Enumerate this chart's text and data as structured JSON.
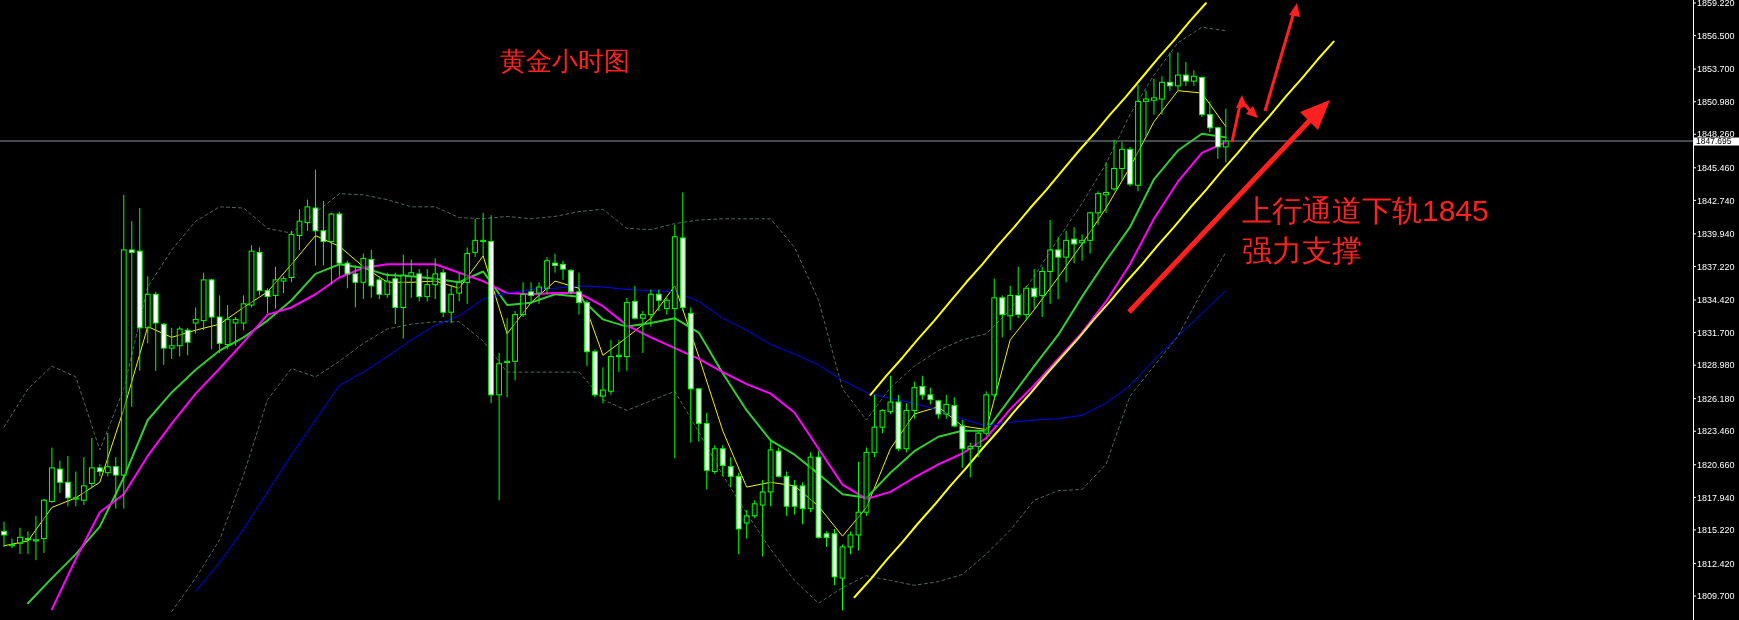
{
  "chart_data": [
    {
      "type": "candlestick",
      "title": "黄金小时图",
      "annotations": [
        "上行通道下轨1845",
        "强力支撑"
      ],
      "tick_labels": "y",
      "grid": false,
      "ylim": [
        1807.7,
        1859.47
      ],
      "yticks": [
        {
          "value": 1859.22,
          "label": "1859.220"
        },
        {
          "value": 1856.5,
          "label": "1856.500"
        },
        {
          "value": 1853.7,
          "label": "1853.700"
        },
        {
          "value": 1850.98,
          "label": "1850.980"
        },
        {
          "value": 1848.26,
          "label": "1848.260"
        },
        {
          "value": 1845.46,
          "label": "1845.460"
        },
        {
          "value": 1842.74,
          "label": "1842.740"
        },
        {
          "value": 1839.94,
          "label": "1839.940"
        },
        {
          "value": 1837.22,
          "label": "1837.220"
        },
        {
          "value": 1834.42,
          "label": "1834.420"
        },
        {
          "value": 1831.7,
          "label": "1831.700"
        },
        {
          "value": 1828.98,
          "label": "1828.980"
        },
        {
          "value": 1826.18,
          "label": "1826.180"
        },
        {
          "value": 1823.46,
          "label": "1823.460"
        },
        {
          "value": 1820.66,
          "label": "1820.660"
        },
        {
          "value": 1817.94,
          "label": "1817.940"
        },
        {
          "value": 1815.22,
          "label": "1815.220"
        },
        {
          "value": 1812.42,
          "label": "1812.420"
        },
        {
          "value": 1809.7,
          "label": "1809.700"
        }
      ],
      "ref_lines": [
        {
          "axis": "y",
          "value": 1847.695,
          "label": "1847.695",
          "color": "#8c96a0"
        }
      ],
      "categories": [
        null,
        null,
        null,
        null,
        null,
        null,
        null,
        null,
        null,
        null,
        null,
        null,
        null,
        null,
        null,
        null,
        null,
        null,
        null,
        null,
        null,
        null,
        null,
        null,
        null,
        null,
        null,
        null,
        null,
        null,
        null,
        null,
        null,
        null,
        null,
        null,
        null,
        null,
        null,
        null,
        null,
        null,
        null,
        null,
        null,
        null,
        null,
        null,
        null,
        null,
        null,
        null,
        null,
        null,
        null,
        null,
        null,
        null,
        null,
        null,
        null,
        null,
        null,
        null,
        null,
        null,
        null,
        null,
        null,
        null,
        null,
        null,
        null,
        null,
        null,
        null,
        null,
        null,
        null,
        null,
        null,
        null,
        null,
        null,
        null,
        null,
        null,
        null,
        null,
        null,
        null,
        null,
        null,
        null,
        null,
        null,
        null,
        null,
        null,
        null,
        null,
        null,
        null,
        null,
        null,
        null,
        null,
        null,
        null,
        null,
        null,
        null,
        null,
        null,
        null,
        null,
        null,
        null,
        null,
        null,
        null,
        null,
        null,
        null,
        null,
        null,
        null,
        null,
        null,
        null,
        null,
        null,
        null,
        null,
        null,
        null,
        null,
        null,
        null,
        null,
        null,
        null,
        null,
        null,
        null,
        null,
        null,
        null,
        null,
        null,
        null,
        null,
        null,
        null,
        null,
        null,
        null,
        null,
        null,
        null,
        null,
        null,
        null,
        null,
        null,
        null,
        null,
        null,
        null,
        null,
        null,
        null,
        null,
        null,
        null,
        null,
        null,
        null,
        null,
        null,
        null,
        null,
        null,
        null,
        null,
        null,
        null,
        null,
        null,
        null,
        null,
        null,
        null,
        null,
        null,
        null,
        null,
        null,
        null,
        null,
        null,
        null,
        null,
        null,
        null,
        null,
        null,
        null,
        null,
        null,
        null,
        null
      ],
      "ohlc": [
        [
          1815.1,
          1815.9,
          1813.8,
          1814.8
        ],
        [
          1813.9,
          1814.5,
          1813.7,
          1814.0
        ],
        [
          1814.1,
          1815.4,
          1813.2,
          1814.6
        ],
        [
          1814.5,
          1815.1,
          1813.2,
          1814.4
        ],
        [
          1814.3,
          1816.4,
          1812.7,
          1814.4
        ],
        [
          1814.5,
          1817.8,
          1813.3,
          1817.7
        ],
        [
          1817.6,
          1822.1,
          1817.5,
          1820.4
        ],
        [
          1820.3,
          1821.0,
          1818.3,
          1819.2
        ],
        [
          1819.2,
          1821.4,
          1817.2,
          1817.9
        ],
        [
          1817.8,
          1820.1,
          1817.2,
          1817.9
        ],
        [
          1817.7,
          1821.3,
          1817.3,
          1818.9
        ],
        [
          1819.1,
          1822.9,
          1818.8,
          1820.4
        ],
        [
          1820.4,
          1820.7,
          1819.7,
          1820.1
        ],
        [
          1820.0,
          1823.3,
          1819.7,
          1820.5
        ],
        [
          1820.5,
          1821.3,
          1817.0,
          1819.8
        ],
        [
          1819.8,
          1843.2,
          1817.0,
          1838.6
        ],
        [
          1838.6,
          1841.0,
          1825.5,
          1838.4
        ],
        [
          1838.5,
          1842.1,
          1828.5,
          1832.1
        ],
        [
          1832.1,
          1836.4,
          1830.8,
          1834.9
        ],
        [
          1834.9,
          1835.1,
          1828.5,
          1832.5
        ],
        [
          1832.4,
          1832.5,
          1829.0,
          1830.4
        ],
        [
          1830.4,
          1832.1,
          1829.5,
          1830.6
        ],
        [
          1830.6,
          1832.2,
          1829.7,
          1832.0
        ],
        [
          1831.9,
          1832.1,
          1829.8,
          1830.9
        ],
        [
          1832.5,
          1833.8,
          1831.6,
          1832.8
        ],
        [
          1832.7,
          1836.7,
          1831.9,
          1836.1
        ],
        [
          1836.1,
          1836.2,
          1830.3,
          1833.0
        ],
        [
          1833.0,
          1834.8,
          1830.0,
          1830.8
        ],
        [
          1830.7,
          1834.0,
          1830.3,
          1832.8
        ],
        [
          1832.5,
          1833.0,
          1830.6,
          1832.8
        ],
        [
          1832.5,
          1834.8,
          1831.9,
          1834.1
        ],
        [
          1834.0,
          1839.0,
          1833.8,
          1838.5
        ],
        [
          1838.4,
          1838.8,
          1834.8,
          1835.2
        ],
        [
          1835.2,
          1835.4,
          1833.3,
          1834.7
        ],
        [
          1834.8,
          1837.2,
          1833.7,
          1836.1
        ],
        [
          1836.0,
          1836.4,
          1835.0,
          1836.2
        ],
        [
          1836.3,
          1840.2,
          1835.9,
          1839.9
        ],
        [
          1839.8,
          1842.0,
          1838.6,
          1841.0
        ],
        [
          1840.9,
          1842.8,
          1840.2,
          1842.2
        ],
        [
          1842.1,
          1845.3,
          1837.3,
          1840.2
        ],
        [
          1840.2,
          1842.7,
          1837.3,
          1839.3
        ],
        [
          1839.3,
          1841.7,
          1835.7,
          1841.6
        ],
        [
          1841.6,
          1841.8,
          1836.4,
          1837.5
        ],
        [
          1837.5,
          1837.7,
          1835.4,
          1836.6
        ],
        [
          1836.6,
          1837.3,
          1833.8,
          1835.9
        ],
        [
          1835.9,
          1838.3,
          1834.5,
          1837.9
        ],
        [
          1837.8,
          1838.6,
          1834.6,
          1835.6
        ],
        [
          1836.1,
          1836.4,
          1834.5,
          1834.9
        ],
        [
          1834.9,
          1836.7,
          1834.6,
          1836.0
        ],
        [
          1836.2,
          1836.7,
          1832.4,
          1833.8
        ],
        [
          1833.8,
          1838.2,
          1831.2,
          1836.5
        ],
        [
          1836.4,
          1837.8,
          1834.6,
          1836.7
        ],
        [
          1836.6,
          1837.0,
          1834.3,
          1834.7
        ],
        [
          1834.7,
          1837.0,
          1834.3,
          1835.7
        ],
        [
          1835.7,
          1837.9,
          1834.5,
          1836.6
        ],
        [
          1836.7,
          1837.0,
          1833.0,
          1833.4
        ],
        [
          1833.4,
          1835.6,
          1832.5,
          1834.9
        ],
        [
          1835.0,
          1836.7,
          1834.3,
          1835.9
        ],
        [
          1835.9,
          1838.8,
          1834.1,
          1838.3
        ],
        [
          1838.4,
          1841.2,
          1838.0,
          1839.4
        ],
        [
          1839.3,
          1841.7,
          1838.1,
          1839.4
        ],
        [
          1839.3,
          1841.5,
          1825.8,
          1826.5
        ],
        [
          1826.5,
          1830.0,
          1817.7,
          1829.1
        ],
        [
          1829.2,
          1832.9,
          1826.3,
          1829.3
        ],
        [
          1829.3,
          1833.5,
          1827.7,
          1833.2
        ],
        [
          1833.2,
          1835.9,
          1833.0,
          1834.9
        ],
        [
          1835.1,
          1835.9,
          1834.1,
          1834.8
        ],
        [
          1835.0,
          1835.9,
          1834.1,
          1835.5
        ],
        [
          1835.4,
          1838.0,
          1834.9,
          1837.7
        ],
        [
          1837.5,
          1838.3,
          1836.7,
          1837.3
        ],
        [
          1837.4,
          1837.7,
          1836.1,
          1837.0
        ],
        [
          1836.9,
          1837.0,
          1834.9,
          1835.1
        ],
        [
          1835.1,
          1836.7,
          1833.2,
          1834.2
        ],
        [
          1834.2,
          1834.4,
          1828.9,
          1830.1
        ],
        [
          1830.1,
          1830.3,
          1826.3,
          1826.5
        ],
        [
          1826.4,
          1828.8,
          1825.8,
          1826.9
        ],
        [
          1826.8,
          1831.1,
          1826.5,
          1829.7
        ],
        [
          1829.7,
          1831.1,
          1828.4,
          1829.8
        ],
        [
          1829.7,
          1834.6,
          1828.5,
          1834.2
        ],
        [
          1834.3,
          1835.6,
          1832.8,
          1832.9
        ],
        [
          1832.9,
          1833.5,
          1830.0,
          1833.2
        ],
        [
          1833.2,
          1835.3,
          1832.2,
          1834.9
        ],
        [
          1834.9,
          1835.3,
          1833.5,
          1834.4
        ],
        [
          1833.7,
          1834.6,
          1833.2,
          1834.4
        ],
        [
          1833.7,
          1840.7,
          1821.2,
          1839.7
        ],
        [
          1839.6,
          1843.4,
          1833.5,
          1833.8
        ],
        [
          1833.3,
          1833.8,
          1822.5,
          1827.0
        ],
        [
          1827.0,
          1827.1,
          1822.6,
          1824.1
        ],
        [
          1824.1,
          1825.0,
          1818.6,
          1820.2
        ],
        [
          1820.1,
          1822.3,
          1819.9,
          1822.0
        ],
        [
          1822.0,
          1822.3,
          1819.7,
          1820.6
        ],
        [
          1820.5,
          1821.3,
          1818.8,
          1819.7
        ],
        [
          1819.7,
          1820.0,
          1813.2,
          1815.3
        ],
        [
          1815.8,
          1816.9,
          1814.5,
          1816.4
        ],
        [
          1816.4,
          1817.7,
          1816.2,
          1817.4
        ],
        [
          1817.3,
          1819.4,
          1813.0,
          1818.4
        ],
        [
          1818.4,
          1822.8,
          1817.2,
          1821.9
        ],
        [
          1821.8,
          1822.1,
          1819.6,
          1819.7
        ],
        [
          1819.7,
          1820.1,
          1816.4,
          1817.2
        ],
        [
          1818.9,
          1819.4,
          1816.5,
          1817.2
        ],
        [
          1818.9,
          1819.2,
          1815.7,
          1817.0
        ],
        [
          1817.0,
          1821.7,
          1816.7,
          1821.3
        ],
        [
          1821.3,
          1821.8,
          1814.5,
          1814.6
        ],
        [
          1814.9,
          1815.1,
          1813.8,
          1814.6
        ],
        [
          1814.9,
          1815.3,
          1810.6,
          1811.3
        ],
        [
          1811.2,
          1814.0,
          1808.5,
          1813.8
        ],
        [
          1813.8,
          1815.1,
          1813.2,
          1814.8
        ],
        [
          1814.8,
          1820.9,
          1813.5,
          1816.7
        ],
        [
          1816.7,
          1822.1,
          1816.4,
          1821.7
        ],
        [
          1821.7,
          1826.5,
          1821.3,
          1823.8
        ],
        [
          1823.8,
          1825.3,
          1823.3,
          1825.2
        ],
        [
          1825.1,
          1828.1,
          1824.9,
          1825.9
        ],
        [
          1825.9,
          1826.5,
          1821.8,
          1822.0
        ],
        [
          1822.0,
          1825.8,
          1821.7,
          1825.2
        ],
        [
          1825.2,
          1827.6,
          1824.5,
          1827.1
        ],
        [
          1827.2,
          1828.1,
          1826.1,
          1826.5
        ],
        [
          1826.5,
          1827.1,
          1825.7,
          1826.1
        ],
        [
          1826.0,
          1826.1,
          1824.5,
          1824.9
        ],
        [
          1824.9,
          1826.5,
          1824.5,
          1825.7
        ],
        [
          1825.6,
          1826.3,
          1823.8,
          1823.9
        ],
        [
          1823.9,
          1824.4,
          1820.4,
          1822.0
        ],
        [
          1822.0,
          1822.5,
          1819.6,
          1822.2
        ],
        [
          1822.2,
          1823.4,
          1821.3,
          1823.3
        ],
        [
          1823.3,
          1826.8,
          1823.1,
          1826.5
        ],
        [
          1826.5,
          1836.2,
          1826.1,
          1834.6
        ],
        [
          1834.6,
          1834.8,
          1831.3,
          1833.2
        ],
        [
          1833.1,
          1835.6,
          1831.9,
          1834.8
        ],
        [
          1834.8,
          1837.2,
          1832.9,
          1833.2
        ],
        [
          1833.2,
          1835.6,
          1832.7,
          1835.4
        ],
        [
          1835.4,
          1837.0,
          1833.7,
          1834.7
        ],
        [
          1834.8,
          1837.2,
          1833.0,
          1836.8
        ],
        [
          1836.8,
          1841.1,
          1834.1,
          1838.6
        ],
        [
          1838.6,
          1839.7,
          1834.5,
          1838.0
        ],
        [
          1838.0,
          1840.2,
          1835.9,
          1839.4
        ],
        [
          1839.5,
          1840.5,
          1837.5,
          1839.1
        ],
        [
          1839.2,
          1839.9,
          1837.7,
          1839.4
        ],
        [
          1839.4,
          1841.8,
          1838.3,
          1841.7
        ],
        [
          1841.7,
          1843.5,
          1840.7,
          1843.3
        ],
        [
          1843.2,
          1845.9,
          1841.7,
          1843.4
        ],
        [
          1843.7,
          1847.8,
          1843.5,
          1845.4
        ],
        [
          1845.4,
          1847.6,
          1844.4,
          1847.0
        ],
        [
          1847.0,
          1847.2,
          1843.9,
          1844.1
        ],
        [
          1844.0,
          1852.4,
          1843.5,
          1851.0
        ],
        [
          1851.0,
          1851.9,
          1848.1,
          1851.2
        ],
        [
          1851.1,
          1852.9,
          1849.9,
          1851.3
        ],
        [
          1851.2,
          1853.1,
          1849.9,
          1852.6
        ],
        [
          1852.6,
          1855.1,
          1851.9,
          1852.3
        ],
        [
          1852.3,
          1855.1,
          1851.9,
          1853.2
        ],
        [
          1853.2,
          1854.3,
          1852.3,
          1852.7
        ],
        [
          1852.7,
          1853.6,
          1852.3,
          1853.1
        ],
        [
          1853.0,
          1853.1,
          1849.7,
          1849.9
        ],
        [
          1849.9,
          1851.0,
          1848.4,
          1848.8
        ],
        [
          1848.8,
          1848.9,
          1846.2,
          1847.2
        ],
        [
          1847.2,
          1850.4,
          1845.9,
          1847.7
        ],
        null,
        null,
        null,
        null,
        null,
        null,
        null,
        null,
        null,
        null,
        null,
        null,
        null,
        null,
        null,
        null,
        null,
        null,
        null,
        null,
        null,
        null,
        null,
        null,
        null,
        null,
        null,
        null,
        null,
        null,
        null,
        null,
        null,
        null,
        null,
        null,
        null,
        null,
        null,
        null,
        null,
        null,
        null,
        null,
        null,
        null,
        null,
        null,
        null,
        null,
        null,
        null,
        null,
        null,
        null,
        null,
        null,
        null
      ]
    },
    {
      "type": "line",
      "tick_labels": false,
      "ylim": [
        1807.7,
        1859.47
      ],
      "categories": [
        null,
        null,
        null,
        null,
        null,
        null,
        null,
        null,
        null,
        null,
        null,
        null,
        null,
        null,
        null,
        null,
        null,
        null,
        null,
        null,
        null,
        null,
        null,
        null,
        null,
        null,
        null,
        null,
        null,
        null,
        null,
        null,
        null,
        null,
        null,
        null,
        null,
        null,
        null,
        null,
        null,
        null,
        null,
        null,
        null,
        null,
        null,
        null,
        null,
        null,
        null,
        null
      ],
      "series": [
        {
          "color": "#f0f000",
          "values": [
            1813.9,
            1814.3,
            1817.1,
            1817.9,
            1819.2,
            1825.3,
            1832.2,
            1831.3,
            1831.9,
            1832.4,
            1833.8,
            1835.1,
            1837.4,
            1839.8,
            1838.9,
            1837.2,
            1835.9,
            1835.9,
            1836.0,
            1835.4,
            1838.1,
            1831.6,
            1834.2,
            1836.0,
            1835.4,
            1829.8,
            1831.3,
            1832.9,
            1835.6,
            1829.7,
            1823.5,
            1818.8,
            1819.2,
            1818.9,
            1817.2,
            1814.7,
            1817.1,
            1822.0,
            1824.9,
            1825.5,
            1823.9,
            1823.6,
            1831.1,
            1833.6,
            1836.3,
            1839.1,
            1842.1,
            1845.5,
            1849.3,
            1851.9,
            1851.7,
            1848.9
          ]
        }
      ]
    },
    {
      "type": "line",
      "tick_labels": false,
      "ylim": [
        1807.7,
        1859.47
      ],
      "categories": [
        null,
        null,
        null,
        null,
        null,
        null,
        null,
        null,
        null,
        null,
        null,
        null,
        null,
        null,
        null,
        null,
        null,
        null,
        null,
        null,
        null,
        null,
        null,
        null,
        null,
        null,
        null,
        null,
        null,
        null,
        null,
        null,
        null,
        null,
        null,
        null,
        null,
        null,
        null,
        null,
        null,
        null,
        null,
        null,
        null,
        null,
        null,
        null,
        null,
        null,
        null
      ],
      "series": [
        {
          "color": "#33cc33",
          "values": [
            1809.1,
            1811.2,
            1813.2,
            1815.5,
            1819.6,
            1824.4,
            1826.7,
            1828.6,
            1830.2,
            1831.3,
            1832.7,
            1834.4,
            1836.6,
            1837.4,
            1837.1,
            1836.5,
            1836.4,
            1836.2,
            1835.9,
            1836.8,
            1834.0,
            1834.2,
            1834.9,
            1834.7,
            1832.8,
            1832.2,
            1832.5,
            1832.9,
            1831.7,
            1828.3,
            1825.2,
            1822.7,
            1821.5,
            1819.9,
            1818.2,
            1817.9,
            1820.0,
            1821.8,
            1823.0,
            1823.5,
            1823.5,
            1826.2,
            1828.9,
            1831.5,
            1834.7,
            1837.7,
            1840.5,
            1844.5,
            1846.9,
            1848.3,
            1848.0
          ]
        }
      ]
    },
    {
      "type": "line",
      "tick_labels": false,
      "ylim": [
        1807.7,
        1859.47
      ],
      "categories": [
        null,
        null,
        null,
        null,
        null,
        null,
        null,
        null,
        null,
        null,
        null,
        null,
        null,
        null,
        null,
        null,
        null,
        null,
        null,
        null,
        null,
        null,
        null,
        null,
        null,
        null,
        null,
        null,
        null,
        null,
        null,
        null,
        null,
        null,
        null,
        null,
        null,
        null,
        null,
        null,
        null,
        null,
        null,
        null,
        null,
        null,
        null,
        null,
        null,
        null
      ],
      "series": [
        {
          "color": "#ff00ff",
          "values": [
            1808.6,
            1812.8,
            1816.7,
            1818.2,
            1821.4,
            1824.1,
            1826.6,
            1828.7,
            1830.9,
            1833.2,
            1833.8,
            1834.9,
            1836.3,
            1837.1,
            1837.4,
            1837.4,
            1837.4,
            1836.7,
            1836.0,
            1835.0,
            1834.9,
            1835.0,
            1835.0,
            1833.9,
            1832.3,
            1831.3,
            1830.4,
            1829.5,
            1828.4,
            1827.4,
            1826.6,
            1825.0,
            1822.0,
            1819.0,
            1817.8,
            1818.4,
            1819.6,
            1820.7,
            1821.6,
            1822.9,
            1825.3,
            1827.3,
            1829.5,
            1831.7,
            1834.3,
            1837.4,
            1841.2,
            1844.3,
            1846.7,
            1847.6
          ]
        }
      ]
    },
    {
      "type": "line",
      "tick_labels": false,
      "ylim": [
        1807.7,
        1859.47
      ],
      "categories": [
        null,
        null,
        null,
        null,
        null,
        null,
        null,
        null,
        null,
        null,
        null,
        null,
        null,
        null,
        null,
        null,
        null,
        null,
        null,
        null,
        null,
        null,
        null,
        null,
        null,
        null,
        null,
        null,
        null,
        null,
        null,
        null,
        null,
        null,
        null,
        null,
        null,
        null,
        null,
        null,
        null,
        null,
        null,
        null
      ],
      "series": [
        {
          "color": "#0000ff",
          "values": [
            1810.1,
            1812.5,
            1815.3,
            1818.4,
            1821.5,
            1824.4,
            1827.3,
            1828.4,
            1829.7,
            1831.1,
            1832.3,
            1833.1,
            1834.5,
            1835.0,
            1835.3,
            1835.4,
            1835.6,
            1835.5,
            1835.3,
            1835.2,
            1835.1,
            1834.3,
            1832.9,
            1831.9,
            1830.7,
            1829.9,
            1829.0,
            1827.7,
            1826.7,
            1826.2,
            1825.8,
            1825.2,
            1824.5,
            1823.9,
            1824.2,
            1824.4,
            1824.5,
            1824.8,
            1825.8,
            1827.3,
            1829.4,
            1831.4,
            1833.3,
            1835.2
          ]
        }
      ]
    },
    {
      "type": "line",
      "tick_labels": false,
      "ylim": [
        1807.7,
        1859.47
      ],
      "categories": [
        null,
        null,
        null,
        null,
        null,
        null,
        null,
        null,
        null,
        null,
        null,
        null,
        null,
        null,
        null,
        null,
        null,
        null,
        null,
        null,
        null,
        null,
        null,
        null,
        null,
        null,
        null,
        null,
        null,
        null,
        null,
        null,
        null,
        null,
        null,
        null,
        null,
        null,
        null,
        null,
        null,
        null,
        null,
        null,
        null,
        null,
        null,
        null,
        null,
        null,
        null,
        null
      ],
      "series": [
        {
          "color": "#4a6a5a",
          "line_style": "dashed",
          "values": [
            1823.8,
            1827.0,
            1828.9,
            1828.0,
            1821.9,
            1827.0,
            1835.5,
            1838.6,
            1841.0,
            1842.2,
            1842.1,
            1840.4,
            1840.0,
            1841.7,
            1843.3,
            1843.2,
            1842.8,
            1842.2,
            1842.2,
            1841.3,
            1841.2,
            1841.4,
            1841.2,
            1841.4,
            1841.8,
            1842.0,
            1840.4,
            1840.3,
            1840.8,
            1841.1,
            1841.2,
            1841.2,
            1841.2,
            1838.8,
            1834.4,
            1827.0,
            1824.4,
            1827.1,
            1828.9,
            1830.2,
            1831.1,
            1831.6,
            1833.6,
            1836.4,
            1839.5,
            1842.5,
            1845.8,
            1849.9,
            1853.2,
            1855.9,
            1857.2,
            1856.9
          ]
        }
      ]
    },
    {
      "type": "line",
      "tick_labels": false,
      "ylim": [
        1807.7,
        1859.47
      ],
      "categories": [
        null,
        null,
        null,
        null,
        null,
        null,
        null,
        null,
        null,
        null,
        null,
        null,
        null,
        null,
        null,
        null,
        null,
        null,
        null,
        null,
        null,
        null,
        null,
        null,
        null,
        null,
        null,
        null,
        null,
        null,
        null,
        null,
        null,
        null,
        null,
        null,
        null,
        null,
        null,
        null,
        null,
        null,
        null,
        null,
        null
      ],
      "series": [
        {
          "color": "#4a6a5a",
          "line_style": "dashed",
          "values": [
            1808.4,
            1811.2,
            1814.4,
            1819.8,
            1826.1,
            1828.7,
            1828.0,
            1829.3,
            1830.8,
            1832.0,
            1832.4,
            1832.6,
            1832.6,
            1831.0,
            1828.4,
            1828.4,
            1828.4,
            1828.4,
            1826.1,
            1825.2,
            1826.0,
            1826.8,
            1823.4,
            1819.8,
            1816.6,
            1813.6,
            1811.0,
            1809.1,
            1810.4,
            1811.4,
            1811.0,
            1810.6,
            1810.9,
            1811.5,
            1813.2,
            1815.2,
            1817.7,
            1818.5,
            1818.6,
            1820.7,
            1826.4,
            1828.9,
            1831.4,
            1835.1,
            1838.4
          ]
        }
      ]
    },
    {
      "type": "line",
      "tick_labels": false,
      "ylim": [
        1807.7,
        1859.47
      ],
      "categories": [
        null,
        null,
        null,
        null,
        null,
        null,
        null,
        null,
        null,
        null,
        null,
        null,
        null,
        null,
        null,
        null,
        null,
        null,
        null,
        null,
        null,
        null,
        null,
        null,
        null,
        null,
        null,
        null,
        null,
        null,
        null,
        null,
        null,
        null,
        null,
        null,
        null,
        null,
        null,
        null,
        null,
        null,
        null,
        null,
        null,
        null,
        null,
        null,
        null,
        null,
        null,
        null,
        null,
        null,
        null,
        null,
        null,
        null,
        null,
        null,
        null,
        null,
        null,
        null,
        null,
        null,
        null,
        null,
        null,
        null,
        null,
        null,
        null,
        null,
        null,
        null,
        null,
        null,
        null,
        null,
        null,
        null,
        null,
        null,
        null,
        null,
        null,
        null,
        null,
        null,
        null,
        null,
        null,
        null,
        null,
        null,
        null,
        null,
        null,
        null,
        null,
        null,
        null,
        null,
        null,
        null
      ],
      "series": [
        {
          "color": "#ffff00",
          "values": [
            null,
            null,
            null,
            null,
            null,
            null,
            null,
            null,
            null,
            null,
            null,
            null,
            null,
            null,
            null,
            null,
            null,
            null,
            null,
            null,
            null,
            null,
            null,
            null,
            null,
            null,
            null,
            null,
            null,
            null,
            null,
            null,
            null,
            null,
            null,
            null,
            null,
            null,
            null,
            null,
            null,
            null,
            null,
            null,
            null,
            null,
            null,
            null,
            null,
            null,
            null,
            null,
            null,
            null,
            1826.5,
            1828.1,
            1829.6,
            1831.2,
            1832.7,
            1834.3,
            1835.9,
            1837.4,
            1839.0,
            1840.5,
            1842.1,
            1843.6,
            1845.2,
            1846.8,
            1848.3,
            1849.9,
            1851.4,
            1853.0,
            1854.6,
            1856.1,
            1857.7,
            1859.2,
            null,
            null,
            null,
            null,
            null,
            null,
            null,
            null,
            null,
            null,
            null,
            null,
            null,
            null,
            null,
            null,
            null,
            null,
            null,
            null,
            null,
            null,
            null,
            null,
            null,
            null,
            null,
            null,
            null,
            null
          ]
        }
      ]
    },
    {
      "type": "line",
      "tick_labels": false,
      "ylim": [
        1807.7,
        1859.47
      ],
      "categories": [
        null,
        null,
        null,
        null,
        null,
        null,
        null,
        null,
        null,
        null,
        null,
        null,
        null,
        null,
        null,
        null,
        null,
        null,
        null,
        null,
        null,
        null,
        null,
        null,
        null,
        null,
        null,
        null,
        null,
        null,
        null,
        null,
        null,
        null,
        null,
        null,
        null,
        null,
        null,
        null,
        null,
        null,
        null,
        null,
        null,
        null,
        null,
        null,
        null,
        null,
        null,
        null,
        null,
        null,
        null,
        null,
        null,
        null,
        null,
        null,
        null,
        null,
        null,
        null,
        null,
        null,
        null,
        null,
        null,
        null,
        null,
        null,
        null,
        null,
        null,
        null,
        null,
        null,
        null,
        null,
        null,
        null,
        null,
        null,
        null,
        null,
        null,
        null,
        null,
        null,
        null,
        null,
        null,
        null,
        null,
        null,
        null,
        null,
        null,
        null,
        null,
        null,
        null,
        null,
        null,
        null
      ],
      "series": [
        {
          "color": "#ffff10",
          "values": [
            null,
            null,
            null,
            null,
            null,
            null,
            null,
            null,
            null,
            null,
            null,
            null,
            null,
            null,
            null,
            null,
            null,
            null,
            null,
            null,
            null,
            null,
            null,
            null,
            null,
            null,
            null,
            null,
            null,
            null,
            null,
            null,
            null,
            null,
            null,
            null,
            null,
            null,
            null,
            null,
            null,
            null,
            null,
            null,
            null,
            null,
            null,
            null,
            null,
            null,
            null,
            null,
            null,
            1809.6,
            1811.1,
            1812.7,
            1814.2,
            1815.8,
            1817.3,
            1818.9,
            1820.4,
            1822.0,
            1823.5,
            1825.1,
            1826.6,
            1828.2,
            1829.7,
            1831.2,
            1832.8,
            1834.3,
            1835.9,
            1837.4,
            1839.0,
            1840.5,
            1842.1,
            1843.6,
            1845.2,
            1846.7,
            1848.3,
            1849.8,
            1851.4,
            1852.9,
            1854.5,
            1856.0,
            null,
            null,
            null,
            null,
            null,
            null,
            null,
            null,
            null,
            null,
            null,
            null,
            null,
            null,
            null,
            null,
            null,
            null,
            null,
            null,
            null,
            null
          ]
        }
      ]
    }
  ]
}
